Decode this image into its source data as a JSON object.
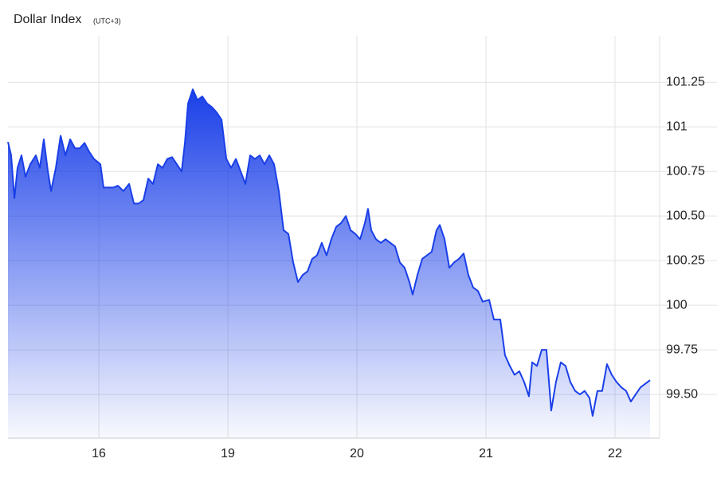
{
  "chart_data": {
    "type": "area",
    "title": "Dollar Index",
    "subtitle": "(UTC+3)",
    "color": "#1a3fe8",
    "grid": true,
    "xlim": [
      0.296,
      5.346
    ],
    "xticks": [
      {
        "value": 1,
        "label": "16"
      },
      {
        "value": 2,
        "label": "19"
      },
      {
        "value": 3,
        "label": "20"
      },
      {
        "value": 4,
        "label": "21"
      },
      {
        "value": 5,
        "label": "22"
      }
    ],
    "ylim": [
      99.255,
      101.51
    ],
    "yticks": [
      {
        "value": 99.5,
        "label": "99.50"
      },
      99.75,
      100,
      100.25,
      {
        "value": 100.5,
        "label": "100.50"
      },
      100.75,
      101,
      101.25
    ],
    "x": [
      0.296,
      0.321,
      0.346,
      0.37,
      0.401,
      0.432,
      0.469,
      0.512,
      0.543,
      0.574,
      0.605,
      0.63,
      0.667,
      0.704,
      0.741,
      0.778,
      0.815,
      0.852,
      0.889,
      0.926,
      0.963,
      1.012,
      1.037,
      1.074,
      1.111,
      1.148,
      1.191,
      1.235,
      1.272,
      1.309,
      1.346,
      1.383,
      1.42,
      1.457,
      1.494,
      1.531,
      1.568,
      1.605,
      1.642,
      1.667,
      1.691,
      1.728,
      1.765,
      1.802,
      1.84,
      1.877,
      1.914,
      1.951,
      1.988,
      2.025,
      2.062,
      2.099,
      2.136,
      2.173,
      2.21,
      2.247,
      2.284,
      2.321,
      2.358,
      2.395,
      2.432,
      2.469,
      2.506,
      2.543,
      2.58,
      2.617,
      2.654,
      2.691,
      2.728,
      2.765,
      2.802,
      2.84,
      2.877,
      2.914,
      2.951,
      2.988,
      3.025,
      3.062,
      3.086,
      3.111,
      3.148,
      3.185,
      3.222,
      3.259,
      3.296,
      3.333,
      3.37,
      3.407,
      3.432,
      3.469,
      3.506,
      3.543,
      3.58,
      3.617,
      3.642,
      3.679,
      3.716,
      3.753,
      3.79,
      3.827,
      3.864,
      3.901,
      3.938,
      3.975,
      4.025,
      4.062,
      4.111,
      4.148,
      4.185,
      4.222,
      4.259,
      4.296,
      4.333,
      4.358,
      4.395,
      4.432,
      4.469,
      4.506,
      4.543,
      4.58,
      4.617,
      4.654,
      4.691,
      4.728,
      4.765,
      4.802,
      4.827,
      4.864,
      4.901,
      4.938,
      4.975,
      5.012,
      5.049,
      5.086,
      5.123,
      5.16,
      5.198,
      5.235,
      5.272
    ],
    "series": [
      {
        "name": "Dollar Index",
        "color": "#1a3fe8",
        "values": [
          100.915,
          100.84,
          100.6,
          100.77,
          100.84,
          100.72,
          100.79,
          100.84,
          100.77,
          100.93,
          100.75,
          100.64,
          100.77,
          100.95,
          100.84,
          100.93,
          100.88,
          100.88,
          100.91,
          100.86,
          100.82,
          100.79,
          100.66,
          100.66,
          100.66,
          100.67,
          100.64,
          100.68,
          100.57,
          100.57,
          100.59,
          100.71,
          100.68,
          100.79,
          100.77,
          100.82,
          100.83,
          100.79,
          100.75,
          100.91,
          101.13,
          101.21,
          101.15,
          101.17,
          101.13,
          101.11,
          101.08,
          101.04,
          100.82,
          100.77,
          100.82,
          100.75,
          100.68,
          100.84,
          100.82,
          100.84,
          100.79,
          100.84,
          100.79,
          100.64,
          100.42,
          100.4,
          100.24,
          100.13,
          100.17,
          100.19,
          100.26,
          100.28,
          100.35,
          100.28,
          100.37,
          100.44,
          100.46,
          100.5,
          100.42,
          100.4,
          100.37,
          100.46,
          100.54,
          100.42,
          100.37,
          100.35,
          100.37,
          100.35,
          100.33,
          100.24,
          100.21,
          100.13,
          100.06,
          100.17,
          100.26,
          100.28,
          100.3,
          100.42,
          100.45,
          100.37,
          100.21,
          100.24,
          100.26,
          100.29,
          100.17,
          100.1,
          100.08,
          100.02,
          100.03,
          99.92,
          99.92,
          99.72,
          99.66,
          99.61,
          99.63,
          99.57,
          99.49,
          99.68,
          99.66,
          99.75,
          99.75,
          99.41,
          99.57,
          99.68,
          99.66,
          99.57,
          99.52,
          99.5,
          99.52,
          99.48,
          99.38,
          99.52,
          99.52,
          99.67,
          99.61,
          99.57,
          99.54,
          99.52,
          99.46,
          99.5,
          99.54,
          99.56,
          99.58
        ]
      }
    ]
  }
}
